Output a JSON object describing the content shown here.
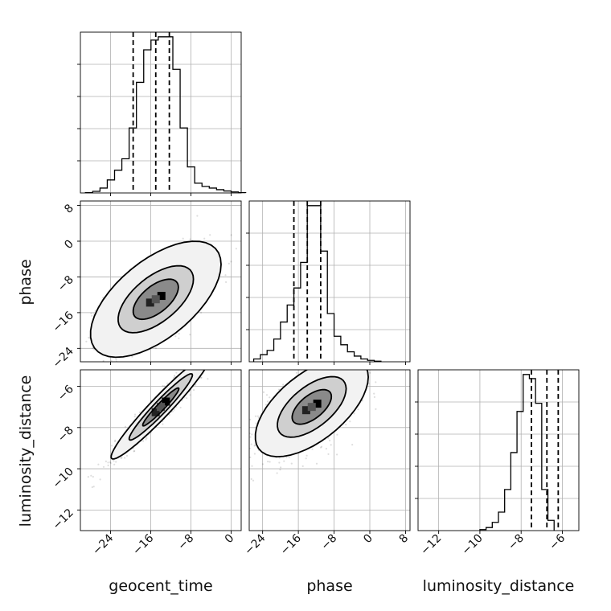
{
  "chart_data": {
    "type": "corner",
    "parameters": [
      {
        "name": "geocent_time",
        "range": [
          -30,
          2
        ],
        "ticks": [
          -24,
          -16,
          -8,
          0
        ],
        "quantiles": [
          -19.5,
          -15.0,
          -12.3
        ],
        "hist_edges_start": -29,
        "hist_bin_width": 1.45,
        "hist": [
          0.1,
          0.5,
          1.5,
          4,
          7,
          10.5,
          20,
          34,
          44,
          47,
          48,
          48,
          38,
          20,
          8,
          3,
          2,
          1.5,
          1,
          0.6,
          0.3,
          0.1
        ]
      },
      {
        "name": "phase",
        "range": [
          -27,
          9
        ],
        "ticks": [
          -24,
          -16,
          -8,
          0,
          8
        ],
        "quantiles": [
          -17,
          -14,
          -11
        ],
        "hist_edges_start": -26,
        "hist_bin_width": 1.5,
        "hist": [
          1,
          2.5,
          4,
          8,
          14,
          20,
          26,
          35,
          55,
          55,
          39,
          17,
          9,
          6,
          3.5,
          2,
          1,
          0.5,
          0.2
        ]
      },
      {
        "name": "luminosity_distance",
        "range": [
          -13,
          -5.2
        ],
        "ticks": [
          -12,
          -10,
          -8,
          -6
        ],
        "quantiles": [
          -7.5,
          -6.75,
          -6.2
        ],
        "hist_edges_start": -10,
        "hist_bin_width": 0.3,
        "hist": [
          0.5,
          1.5,
          4,
          9,
          20,
          38,
          58,
          76,
          74,
          62,
          20,
          5
        ]
      }
    ],
    "pairs": [
      {
        "x": "geocent_time",
        "y": "phase",
        "mean": [
          -15,
          -13
        ],
        "sd": [
          5,
          5
        ],
        "corr": 0.6,
        "contour_scales": [
          2.6,
          1.5,
          0.9
        ]
      },
      {
        "x": "geocent_time",
        "y": "luminosity_distance",
        "mean": [
          -14,
          -7
        ],
        "sd": [
          4.5,
          1.15
        ],
        "corr": 0.96,
        "contour_scales": [
          2.2,
          1.4,
          0.8
        ]
      },
      {
        "x": "phase",
        "y": "luminosity_distance",
        "mean": [
          -13,
          -7
        ],
        "sd": [
          5.5,
          1.05
        ],
        "corr": 0.6,
        "contour_scales": [
          2.3,
          1.4,
          0.8
        ]
      }
    ],
    "grid": true,
    "quantile_line_style": "dashed"
  }
}
